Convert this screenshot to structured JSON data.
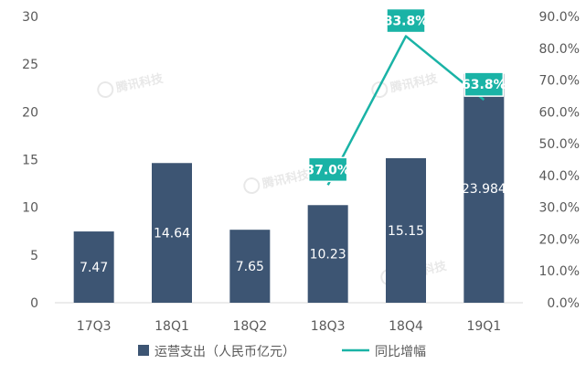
{
  "chart_data": {
    "type": "bar",
    "categories": [
      "17Q3",
      "18Q1",
      "18Q2",
      "18Q3",
      "18Q4",
      "19Q1"
    ],
    "series": [
      {
        "name": "运营支出（人民币亿元）",
        "type": "bar",
        "axis": "left",
        "color": "#3d5573",
        "values": [
          7.47,
          14.64,
          7.65,
          10.23,
          15.15,
          23.984
        ],
        "labels": [
          "7.47",
          "14.64",
          "7.65",
          "10.23",
          "15.15",
          "23.984"
        ]
      },
      {
        "name": "同比增幅",
        "type": "line",
        "axis": "right",
        "color": "#1ab3a6",
        "values": [
          null,
          null,
          null,
          37.0,
          83.8,
          63.8
        ],
        "labels": [
          "",
          "",
          "",
          "37.0%",
          "83.8%",
          "63.8%"
        ]
      }
    ],
    "y_left": {
      "min": 0,
      "max": 30,
      "ticks": [
        "0",
        "5",
        "10",
        "15",
        "20",
        "25",
        "30"
      ]
    },
    "y_right": {
      "min": 0,
      "max": 90,
      "ticks": [
        "0.0%",
        "10.0%",
        "20.0%",
        "30.0%",
        "40.0%",
        "50.0%",
        "60.0%",
        "70.0%",
        "80.0%",
        "90.0%"
      ]
    },
    "grid": false,
    "legend_position": "bottom",
    "watermark": "腾讯科技"
  }
}
